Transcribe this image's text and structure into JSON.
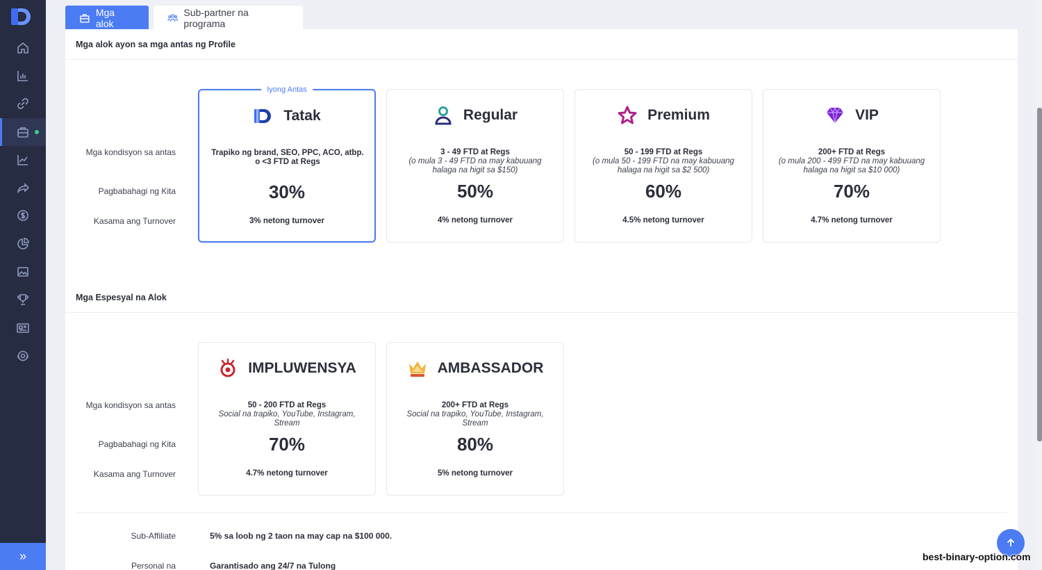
{
  "sidebar": {
    "icons": [
      "home-icon",
      "stats-icon",
      "link-icon",
      "briefcase-icon",
      "trend-icon",
      "share-icon",
      "dollar-icon",
      "pie-chart-icon",
      "image-icon",
      "trophy-icon",
      "news-icon",
      "support-icon"
    ]
  },
  "tabs": {
    "offers": "Mga alok",
    "subpartner": "Sub-partner na programa"
  },
  "profile_section": {
    "title": "Mga alok ayon sa mga antas ng Profile",
    "row_labels": {
      "conditions": "Mga kondisyon sa antas",
      "profit_share": "Pagbabahagi ng Kita",
      "turnover": "Kasama ang Turnover"
    },
    "current_tag": "Iyong Antas",
    "levels": [
      {
        "name": "Tatak",
        "cond_main": "Trapiko ng brand, SEO, PPC, ACO, atbp. o <3 FTD at Regs",
        "cond_sub": "",
        "pct": "30%",
        "turnover": "3% netong turnover"
      },
      {
        "name": "Regular",
        "cond_main": "3 - 49 FTD at Regs",
        "cond_sub": "(o mula 3 - 49 FTD na may kabuuang halaga na higit sa $150)",
        "pct": "50%",
        "turnover": "4% netong turnover"
      },
      {
        "name": "Premium",
        "cond_main": "50 - 199 FTD at Regs",
        "cond_sub": "(o mula 50 - 199 FTD na may kabuuang halaga na higit sa $2 500)",
        "pct": "60%",
        "turnover": "4.5% netong turnover"
      },
      {
        "name": "VIP",
        "cond_main": "200+ FTD at Regs",
        "cond_sub": "(o mula 200 - 499 FTD na may kabuuang halaga na higit sa $10 000)",
        "pct": "70%",
        "turnover": "4.7% netong turnover"
      }
    ]
  },
  "special_section": {
    "title": "Mga Espesyal na Alok",
    "row_labels": {
      "conditions": "Mga kondisyon sa antas",
      "profit_share": "Pagbabahagi ng Kita",
      "turnover": "Kasama ang Turnover"
    },
    "offers": [
      {
        "name": "IMPLUWENSYA",
        "cond_main": "50 - 200 FTD at Regs",
        "cond_sub": "Social na trapiko, YouTube, Instagram, Stream",
        "pct": "70%",
        "turnover": "4.7% netong turnover"
      },
      {
        "name": "AMBASSADOR",
        "cond_main": "200+ FTD at Regs",
        "cond_sub": "Social na trapiko, YouTube, Instagram, Stream",
        "pct": "80%",
        "turnover": "5% netong turnover"
      }
    ]
  },
  "bottom": [
    {
      "label": "Sub-Affiliate",
      "value": "5% sa loob ng 2 taon na may cap na $100 000."
    },
    {
      "label": "Personal na",
      "value": "Garantisado ang 24/7 na Tulong"
    }
  ],
  "watermark": "best-binary-option.com",
  "colors": {
    "sidebar": "#262c41",
    "accent": "#4c7cf3",
    "active_dot": "#3ecf8e"
  }
}
